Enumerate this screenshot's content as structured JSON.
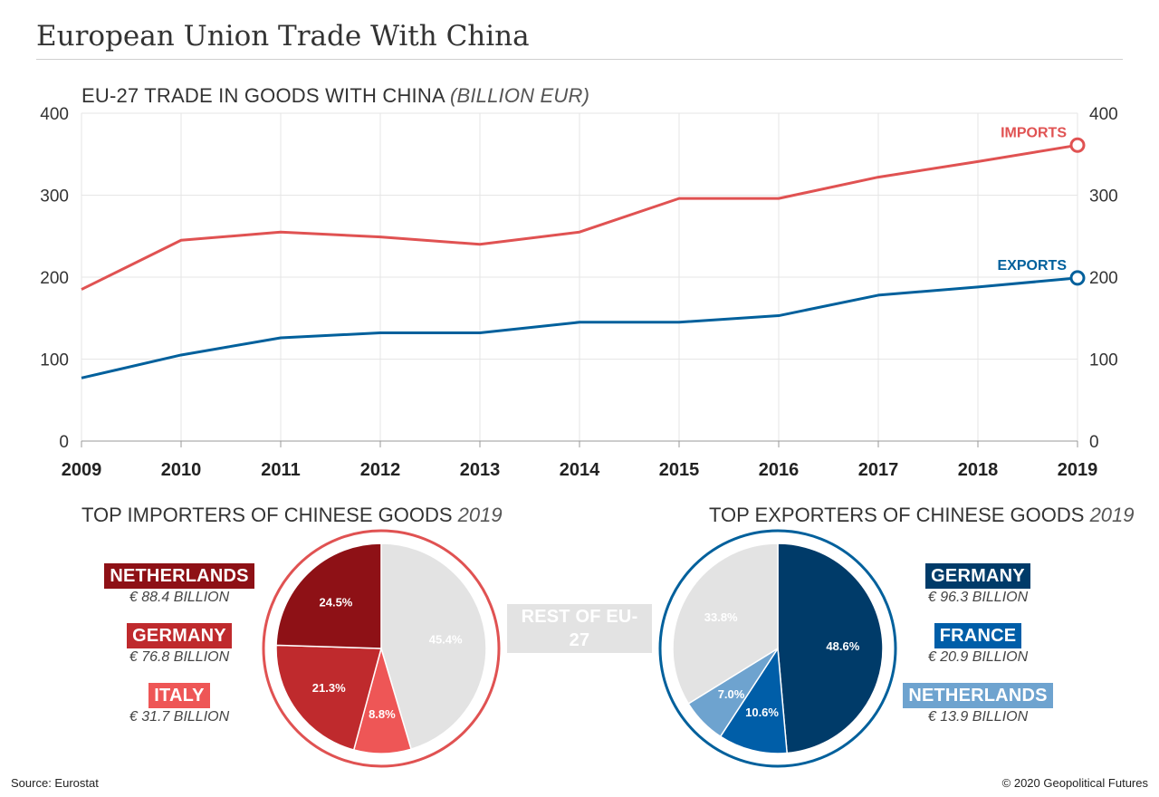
{
  "header": {
    "title": "European Union Trade With China"
  },
  "line_chart": {
    "title": "EU-27 TRADE IN GOODS WITH CHINA",
    "unit": "(BILLION EUR)"
  },
  "importers": {
    "title": "TOP IMPORTERS OF CHINESE GOODS",
    "year": "2019"
  },
  "exporters": {
    "title": "TOP EXPORTERS OF CHINESE GOODS",
    "year": "2019"
  },
  "footer": {
    "source": "Source: Eurostat",
    "copyright": "© 2020 Geopolitical Futures"
  },
  "colors": {
    "imports": "#e05252",
    "exports": "#00609c",
    "imp_dark": "#8e1116",
    "imp_mid": "#bf2a2d",
    "imp_light": "#ee5656",
    "exp_dark": "#003b69",
    "exp_mid": "#005ea8",
    "exp_light": "#6ea3cf",
    "rest": "#e3e3e3"
  },
  "chart_data": [
    {
      "type": "line",
      "title": "EU-27 TRADE IN GOODS WITH CHINA (BILLION EUR)",
      "x": [
        "2009",
        "2010",
        "2011",
        "2012",
        "2013",
        "2014",
        "2015",
        "2016",
        "2017",
        "2018",
        "2019"
      ],
      "series": [
        {
          "name": "IMPORTS",
          "values": [
            185,
            245,
            255,
            249,
            240,
            255,
            296,
            296,
            322,
            341,
            361
          ]
        },
        {
          "name": "EXPORTS",
          "values": [
            77,
            105,
            126,
            132,
            132,
            145,
            145,
            153,
            178,
            188,
            199
          ]
        }
      ],
      "ylim": [
        0,
        400
      ],
      "yticks": [
        0,
        100,
        200,
        300,
        400
      ],
      "grid": true
    },
    {
      "type": "pie",
      "title": "TOP IMPORTERS OF CHINESE GOODS 2019",
      "slices": [
        {
          "label": "NETHERLANDS",
          "amount": "€ 88.4 BILLION",
          "pct": 24.5,
          "value_label": "24.5%"
        },
        {
          "label": "GERMANY",
          "amount": "€ 76.8 BILLION",
          "pct": 21.3,
          "value_label": "21.3%"
        },
        {
          "label": "ITALY",
          "amount": "€ 31.7 BILLION",
          "pct": 8.8,
          "value_label": "8.8%"
        },
        {
          "label": "REST OF EU-27",
          "pct": 45.4,
          "value_label": "45.4%"
        }
      ]
    },
    {
      "type": "pie",
      "title": "TOP EXPORTERS OF CHINESE GOODS 2019",
      "slices": [
        {
          "label": "GERMANY",
          "amount": "€ 96.3 BILLION",
          "pct": 48.6,
          "value_label": "48.6%"
        },
        {
          "label": "FRANCE",
          "amount": "€ 20.9 BILLION",
          "pct": 10.6,
          "value_label": "10.6%"
        },
        {
          "label": "NETHERLANDS",
          "amount": "€ 13.9 BILLION",
          "pct": 7.0,
          "value_label": "7.0%"
        },
        {
          "label": "REST OF EU-27",
          "pct": 33.8,
          "value_label": "33.8%"
        }
      ]
    }
  ]
}
